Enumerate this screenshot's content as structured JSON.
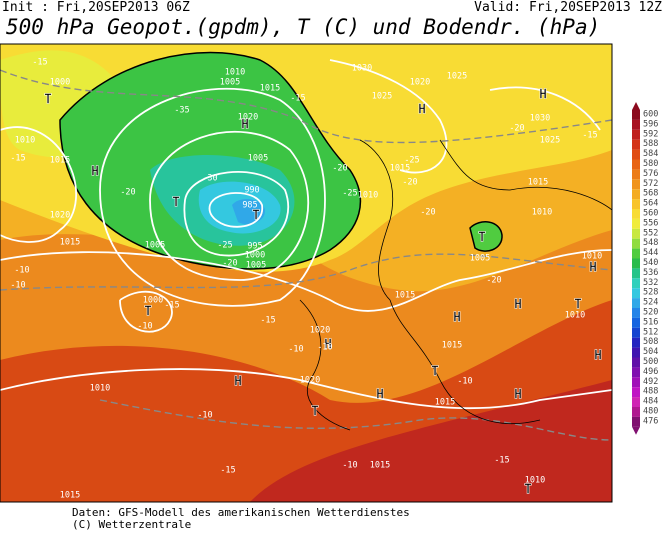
{
  "header": {
    "init": "Init : Fri,20SEP2013 06Z",
    "valid": "Valid: Fri,20SEP2013 12Z",
    "title": "500 hPa Geopot.(gpdm), T (C) und Bodendr. (hPa)"
  },
  "colorbar": {
    "levels": [
      600,
      596,
      592,
      588,
      584,
      580,
      576,
      572,
      568,
      564,
      560,
      556,
      552,
      548,
      544,
      540,
      536,
      532,
      528,
      524,
      520,
      516,
      512,
      508,
      504,
      500,
      496,
      492,
      488,
      484,
      480,
      476
    ],
    "colors": [
      "#8c0a1e",
      "#a81222",
      "#c0201e",
      "#d43418",
      "#e04c12",
      "#e86414",
      "#ec7c18",
      "#f0941c",
      "#f4ac22",
      "#f8c42a",
      "#f8dc34",
      "#f0ec3c",
      "#c8e840",
      "#90dc40",
      "#50cc40",
      "#28bc4c",
      "#24c488",
      "#30d0bc",
      "#34c8e0",
      "#30a8e8",
      "#2484e8",
      "#1464e0",
      "#1444d0",
      "#2424c0",
      "#4014b0",
      "#6010a8",
      "#8010b0",
      "#a010b8",
      "#c014c4",
      "#d024b4",
      "#b01890",
      "#801070"
    ]
  },
  "map": {
    "labels": [
      "-15",
      "1000",
      "T",
      "1010",
      "-15",
      "H",
      "1020",
      "1015",
      "-10",
      "-10",
      "1005",
      "1000",
      "T",
      "-10",
      "-15",
      "-20",
      "-25",
      "985",
      "T",
      "990",
      "995",
      "1000",
      "1005",
      "1010",
      "1005",
      "H",
      "1020",
      "1015",
      "-15",
      "1005",
      "-30",
      "-35",
      "-25",
      "1010",
      "-20",
      "1030",
      "1020",
      "1025",
      "1025",
      "H",
      "-25",
      "-20",
      "1015",
      "H",
      "1030",
      "-20",
      "1025",
      "-15",
      "1015",
      "1010",
      "T",
      "-20",
      "1005",
      "-20",
      "H",
      "T",
      "1010",
      "H",
      "1010",
      "1015",
      "H",
      "1015",
      "T",
      "-10",
      "1015",
      "H",
      "1020",
      "-10",
      "-15",
      "1020",
      "H",
      "-10",
      "-15",
      "T",
      "-10",
      "1015",
      "H",
      "H",
      "-15",
      "T",
      "1010",
      "1015",
      "1010",
      "H",
      "-10",
      "1015",
      "-20",
      "T"
    ]
  },
  "footer": {
    "line1": "Daten: GFS-Modell des amerikanischen Wetterdienstes",
    "line2": "(C) Wetterzentrale"
  }
}
